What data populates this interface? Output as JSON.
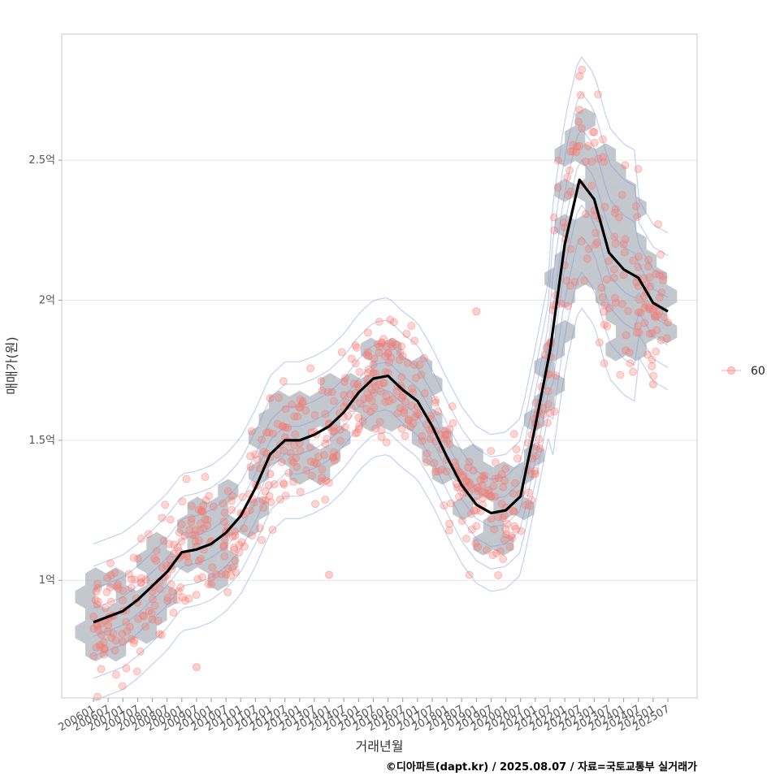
{
  "chart_data": {
    "type": "scatter",
    "title": "",
    "xlabel": "거래년월",
    "ylabel": "매매가(원)",
    "caption": "©디아파트(dapt.kr) / 2025.08.07 / 자료=국토교통부 실거래가",
    "x_tick_labels": [
      "200601",
      "200607",
      "200701",
      "200707",
      "200801",
      "200807",
      "200901",
      "200907",
      "201001",
      "201007",
      "201101",
      "201107",
      "201201",
      "201207",
      "201301",
      "201307",
      "201401",
      "201407",
      "201501",
      "201507",
      "201601",
      "201607",
      "201701",
      "201707",
      "201801",
      "201807",
      "201901",
      "201907",
      "202001",
      "202007",
      "202101",
      "202107",
      "202201",
      "202207",
      "202301",
      "202307",
      "202401",
      "202407",
      "202501",
      "202507"
    ],
    "y_ticks": [
      {
        "value": 1.0,
        "label": "1억"
      },
      {
        "value": 1.5,
        "label": "1.5억"
      },
      {
        "value": 2.0,
        "label": "2억"
      },
      {
        "value": 2.5,
        "label": "2.5억"
      }
    ],
    "ylim": [
      0.58,
      2.95
    ],
    "y_unit": "억",
    "grid": true,
    "legend_position": "right",
    "legend": [
      {
        "name": "60",
        "color": "#f8766d"
      }
    ],
    "colors": {
      "points": "#f8766d",
      "trend": "#000000",
      "hex": "#aab3bb",
      "contour": "#7f96e0"
    },
    "layers": [
      "hexbin",
      "scatter",
      "density-contour",
      "moving-average-line"
    ],
    "trend_line": {
      "name": "",
      "x": [
        "200601",
        "200607",
        "200701",
        "200707",
        "200801",
        "200807",
        "200901",
        "200907",
        "201001",
        "201007",
        "201101",
        "201107",
        "201201",
        "201207",
        "201301",
        "201307",
        "201401",
        "201407",
        "201501",
        "201507",
        "201601",
        "201607",
        "201701",
        "201707",
        "201801",
        "201807",
        "201901",
        "201907",
        "202001",
        "202007",
        "202101",
        "202107",
        "202201",
        "202207",
        "202301",
        "202307",
        "202401",
        "202407",
        "202501",
        "202507"
      ],
      "values": [
        0.85,
        0.87,
        0.89,
        0.93,
        0.98,
        1.03,
        1.1,
        1.11,
        1.13,
        1.17,
        1.23,
        1.33,
        1.45,
        1.5,
        1.5,
        1.52,
        1.55,
        1.6,
        1.67,
        1.72,
        1.73,
        1.68,
        1.64,
        1.55,
        1.44,
        1.34,
        1.27,
        1.24,
        1.25,
        1.3,
        1.55,
        1.82,
        2.2,
        2.43,
        2.36,
        2.17,
        2.11,
        2.08,
        1.99,
        1.96
      ]
    },
    "point_cloud": [
      [
        0,
        0.87
      ],
      [
        1,
        0.84
      ],
      [
        2,
        0.89
      ],
      [
        3,
        0.92
      ],
      [
        4,
        0.96
      ],
      [
        5,
        1.02
      ],
      [
        6,
        1.09
      ],
      [
        7,
        1.12
      ],
      [
        8,
        1.14
      ],
      [
        9,
        1.17
      ],
      [
        10,
        1.24
      ],
      [
        11,
        1.34
      ],
      [
        12,
        1.44
      ],
      [
        13,
        1.51
      ],
      [
        14,
        1.49
      ],
      [
        15,
        1.53
      ],
      [
        16,
        1.56
      ],
      [
        17,
        1.62
      ],
      [
        18,
        1.69
      ],
      [
        19,
        1.74
      ],
      [
        20,
        1.74
      ],
      [
        21,
        1.66
      ],
      [
        22,
        1.62
      ],
      [
        23,
        1.54
      ],
      [
        24,
        1.43
      ],
      [
        25,
        1.33
      ],
      [
        26,
        1.25
      ],
      [
        27,
        1.22
      ],
      [
        28,
        1.26
      ],
      [
        29,
        1.31
      ],
      [
        30,
        1.56
      ],
      [
        31,
        1.85
      ],
      [
        32,
        2.26
      ],
      [
        33,
        2.55
      ],
      [
        34,
        2.32
      ],
      [
        35,
        2.14
      ],
      [
        36,
        2.09
      ],
      [
        37,
        2.05
      ],
      [
        38,
        1.97
      ],
      [
        39,
        1.92
      ],
      [
        2,
        0.78
      ],
      [
        4,
        0.86
      ],
      [
        6,
        1.2
      ],
      [
        9,
        1.02
      ],
      [
        12,
        1.38
      ],
      [
        15,
        1.42
      ],
      [
        18,
        1.58
      ],
      [
        21,
        1.8
      ],
      [
        24,
        1.52
      ],
      [
        27,
        1.3
      ],
      [
        30,
        1.38
      ],
      [
        33,
        2.68
      ],
      [
        33,
        2.8
      ],
      [
        34,
        2.6
      ],
      [
        36,
        2.2
      ],
      [
        38,
        1.7
      ],
      [
        26,
        1.96
      ],
      [
        16,
        1.02
      ],
      [
        7,
        0.69
      ],
      [
        12,
        1.65
      ]
    ]
  }
}
